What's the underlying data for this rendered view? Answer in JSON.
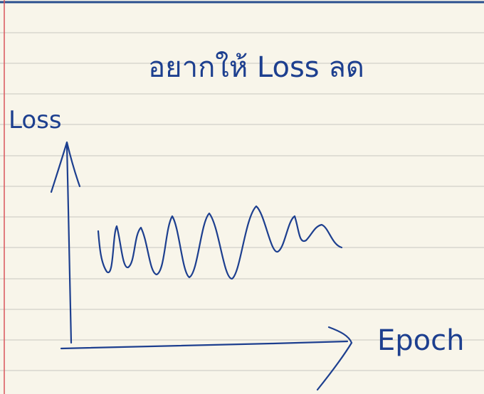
{
  "note": {
    "title": "อยากให้ Loss ลด",
    "y_axis_label": "Loss",
    "x_axis_label": "Epoch"
  }
}
